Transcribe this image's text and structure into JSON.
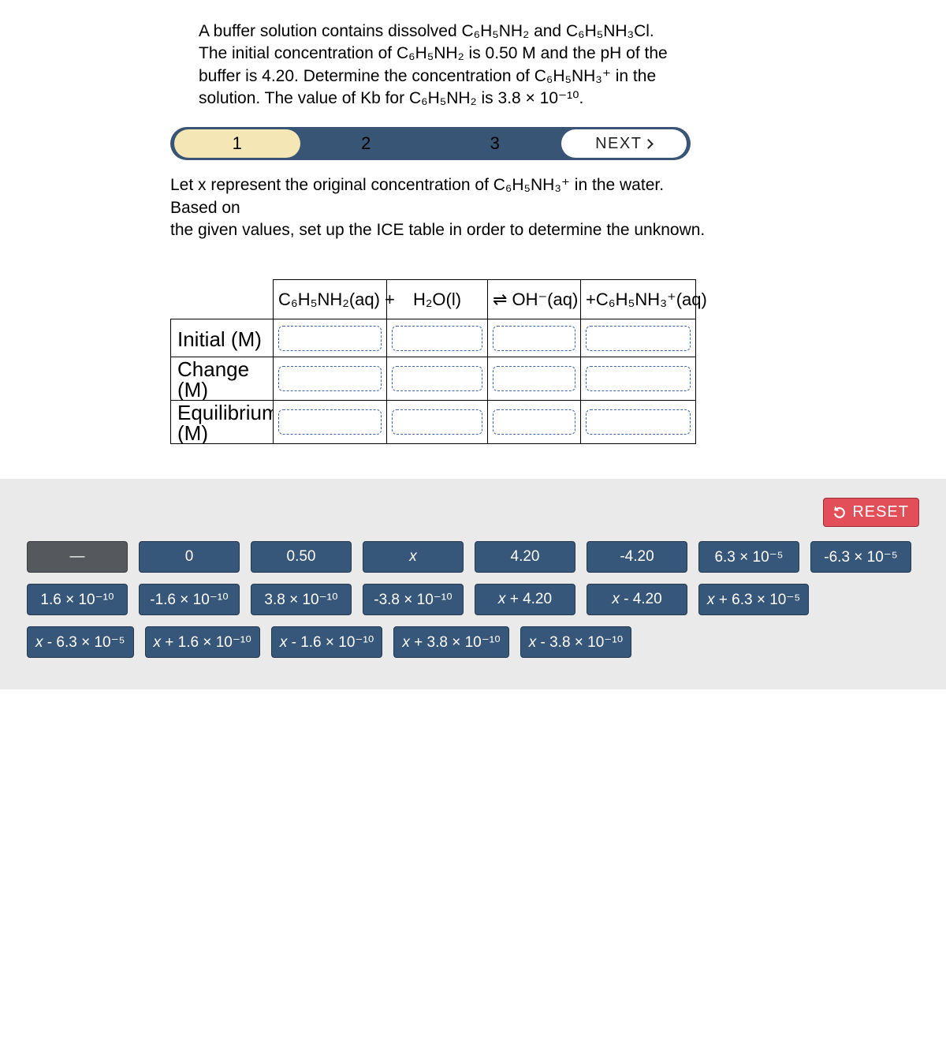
{
  "question": {
    "line1": "A buffer solution contains dissolved C₆H₅NH₂ and C₆H₅NH₃Cl.",
    "line2": "The initial concentration of C₆H₅NH₂ is 0.50 M and the pH of the",
    "line3": "buffer is 4.20. Determine the concentration of C₆H₅NH₃⁺ in the",
    "line4": "solution. The value of Kb for C₆H₅NH₂ is 3.8 × 10⁻¹⁰."
  },
  "stepper": {
    "steps": [
      "1",
      "2",
      "3"
    ],
    "active": 1,
    "next_label": "NEXT"
  },
  "instructions": {
    "line1": "Let x represent the original concentration of C₆H₅NH₃⁺ in the water. Based on",
    "line2": "the given values, set up the ICE table in order to determine the unknown."
  },
  "ice": {
    "col_headers": [
      "C₆H₅NH₂(aq) +",
      "H₂O(l)",
      "⇌  OH⁻(aq)",
      "+C₆H₅NH₃⁺(aq)"
    ],
    "row_labels": [
      "Initial (M)",
      "Change (M)",
      "Equilibrium (M)"
    ]
  },
  "reset_label": "RESET",
  "chips": [
    {
      "text": "—",
      "style": "gray"
    },
    {
      "text": "0",
      "style": "blue"
    },
    {
      "text": "0.50",
      "style": "blue"
    },
    {
      "text": "x",
      "style": "blue",
      "italic": true
    },
    {
      "text": "4.20",
      "style": "blue"
    },
    {
      "text": "-4.20",
      "style": "blue"
    },
    {
      "text": "6.3 × 10⁻⁵",
      "style": "blue"
    },
    {
      "text": "-6.3 × 10⁻⁵",
      "style": "blue"
    },
    {
      "text": "1.6 × 10⁻¹⁰",
      "style": "blue"
    },
    {
      "text": "-1.6 × 10⁻¹⁰",
      "style": "blue"
    },
    {
      "text": "3.8 × 10⁻¹⁰",
      "style": "blue"
    },
    {
      "text": "-3.8 × 10⁻¹⁰",
      "style": "blue"
    },
    {
      "text": "x + 4.20",
      "style": "blue"
    },
    {
      "text": "x - 4.20",
      "style": "blue"
    },
    {
      "text": "x + 6.3 × 10⁻⁵",
      "style": "blue"
    },
    {
      "text": "x - 6.3 × 10⁻⁵",
      "style": "blue"
    },
    {
      "text": "x + 1.6 × 10⁻¹⁰",
      "style": "blue"
    },
    {
      "text": "x - 1.6 × 10⁻¹⁰",
      "style": "blue"
    },
    {
      "text": "x + 3.8 × 10⁻¹⁰",
      "style": "blue"
    },
    {
      "text": "x - 3.8 × 10⁻¹⁰",
      "style": "blue"
    }
  ],
  "colors": {
    "stepper_bg": "#395575",
    "active_pill": "#f5e7b5",
    "chip_gray": "#55585d",
    "chip_blue": "#37577a",
    "reset": "#e24f59",
    "answer_bg": "#ebeaea",
    "drop_border": "#3a66a8"
  }
}
